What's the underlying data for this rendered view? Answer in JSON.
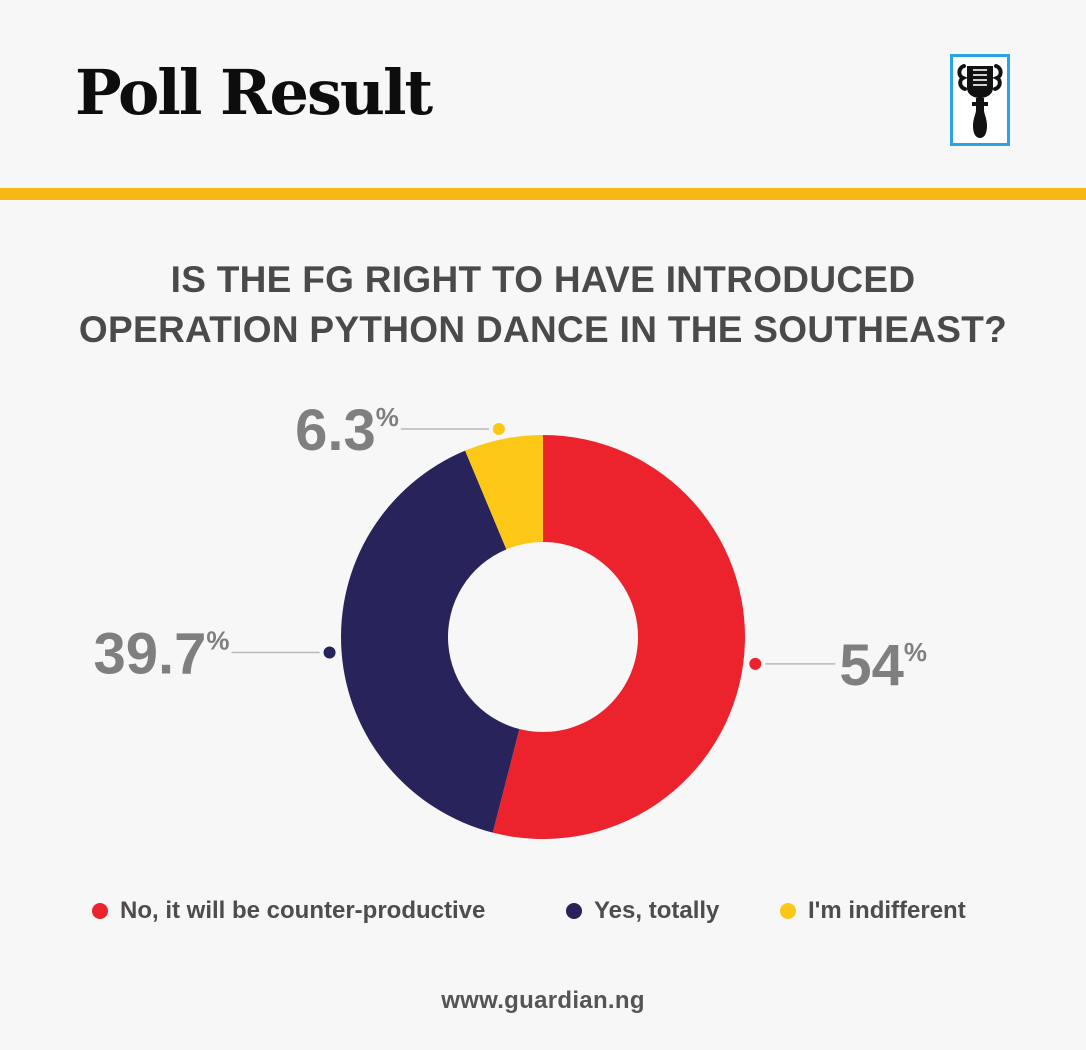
{
  "header": {
    "title": "Poll Result",
    "logo_icon": "guardian-logo-icon"
  },
  "colors": {
    "accent_bar": "#f7b816",
    "logo_border": "#29a3e6",
    "no": "#ec222c",
    "yes": "#29235c",
    "indifferent": "#fcc716"
  },
  "question": {
    "line1": "IS THE FG RIGHT TO HAVE INTRODUCED",
    "line2": "OPERATION PYTHON DANCE IN THE SOUTHEAST?"
  },
  "chart_data": {
    "type": "pie",
    "style": "donut",
    "categories": [
      "No, it will be counter-productive",
      "Yes, totally",
      "I'm indifferent"
    ],
    "values": [
      54,
      39.7,
      6.3
    ],
    "labels": [
      "54",
      "39.7",
      "6.3"
    ],
    "unit": "%",
    "colors": [
      "#ec222c",
      "#29235c",
      "#fcc716"
    ],
    "legend_position": "bottom"
  },
  "legend": {
    "items": [
      {
        "label": "No, it will be counter-productive",
        "color": "#ec222c"
      },
      {
        "label": "Yes, totally",
        "color": "#29235c"
      },
      {
        "label": "I'm indifferent",
        "color": "#fcc716"
      }
    ]
  },
  "footer": {
    "url": "www.guardian.ng"
  }
}
